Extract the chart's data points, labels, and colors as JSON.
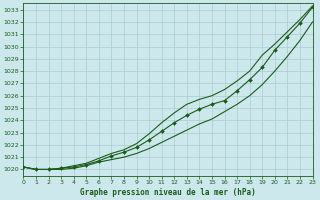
{
  "title": "Graphe pression niveau de la mer (hPa)",
  "bg_color": "#cce8ec",
  "grid_color": "#aacccc",
  "line_color": "#1a5c1a",
  "x_min": 0,
  "x_max": 23,
  "y_min": 1019.5,
  "y_max": 1033.5,
  "x_ticks": [
    0,
    1,
    2,
    3,
    4,
    5,
    6,
    7,
    8,
    9,
    10,
    11,
    12,
    13,
    14,
    15,
    16,
    17,
    18,
    19,
    20,
    21,
    22,
    23
  ],
  "y_ticks": [
    1020,
    1021,
    1022,
    1023,
    1024,
    1025,
    1026,
    1027,
    1028,
    1029,
    1030,
    1031,
    1032,
    1033
  ],
  "line_top_x": [
    0,
    1,
    2,
    3,
    4,
    5,
    6,
    7,
    8,
    9,
    10,
    11,
    12,
    13,
    14,
    15,
    16,
    17,
    18,
    19,
    20,
    21,
    22,
    23
  ],
  "line_top_y": [
    1020.2,
    1020.0,
    1020.0,
    1020.1,
    1020.3,
    1020.5,
    1020.9,
    1021.3,
    1021.6,
    1022.1,
    1022.9,
    1023.8,
    1024.6,
    1025.3,
    1025.7,
    1026.0,
    1026.5,
    1027.2,
    1028.0,
    1029.3,
    1030.2,
    1031.2,
    1032.2,
    1033.3
  ],
  "line_mid_x": [
    0,
    1,
    2,
    3,
    4,
    5,
    6,
    7,
    8,
    9,
    10,
    11,
    12,
    13,
    14,
    15,
    16,
    17,
    18,
    19,
    20,
    21,
    22,
    23
  ],
  "line_mid_y": [
    1020.2,
    1020.0,
    1020.0,
    1020.1,
    1020.2,
    1020.4,
    1020.7,
    1021.1,
    1021.4,
    1021.8,
    1022.4,
    1023.1,
    1023.8,
    1024.4,
    1024.9,
    1025.3,
    1025.6,
    1026.4,
    1027.3,
    1028.3,
    1029.7,
    1030.8,
    1031.9,
    1033.2
  ],
  "line_bot_x": [
    0,
    1,
    2,
    3,
    4,
    5,
    6,
    7,
    8,
    9,
    10,
    11,
    12,
    13,
    14,
    15,
    16,
    17,
    18,
    19,
    20,
    21,
    22,
    23
  ],
  "line_bot_y": [
    1020.2,
    1020.0,
    1020.0,
    1020.0,
    1020.1,
    1020.3,
    1020.6,
    1020.8,
    1021.0,
    1021.3,
    1021.7,
    1022.2,
    1022.7,
    1023.2,
    1023.7,
    1024.1,
    1024.7,
    1025.3,
    1026.0,
    1026.9,
    1028.0,
    1029.2,
    1030.5,
    1032.0
  ]
}
